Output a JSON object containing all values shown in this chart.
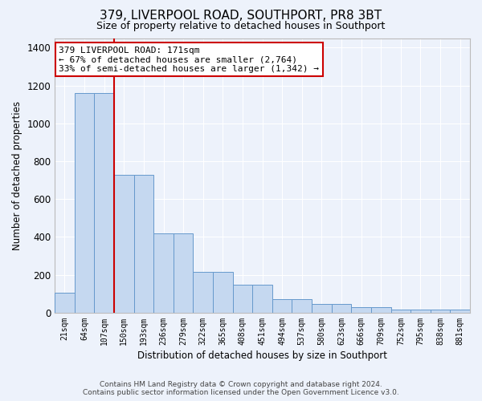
{
  "title": "379, LIVERPOOL ROAD, SOUTHPORT, PR8 3BT",
  "subtitle": "Size of property relative to detached houses in Southport",
  "xlabel": "Distribution of detached houses by size in Southport",
  "ylabel": "Number of detached properties",
  "footer1": "Contains HM Land Registry data © Crown copyright and database right 2024.",
  "footer2": "Contains public sector information licensed under the Open Government Licence v3.0.",
  "categories": [
    "21sqm",
    "64sqm",
    "107sqm",
    "150sqm",
    "193sqm",
    "236sqm",
    "279sqm",
    "322sqm",
    "365sqm",
    "408sqm",
    "451sqm",
    "494sqm",
    "537sqm",
    "580sqm",
    "623sqm",
    "666sqm",
    "709sqm",
    "752sqm",
    "795sqm",
    "838sqm",
    "881sqm"
  ],
  "bar_heights": [
    107,
    1160,
    1160,
    730,
    730,
    420,
    420,
    215,
    215,
    150,
    150,
    72,
    72,
    48,
    48,
    30,
    30,
    18,
    18,
    15,
    15
  ],
  "bar_color": "#c5d8f0",
  "bar_edge_color": "#6699cc",
  "annotation_line1": "379 LIVERPOOL ROAD: 171sqm",
  "annotation_line2": "← 67% of detached houses are smaller (2,764)",
  "annotation_line3": "33% of semi-detached houses are larger (1,342) →",
  "annotation_box_facecolor": "#ffffff",
  "annotation_box_edgecolor": "#cc0000",
  "vline_color": "#cc0000",
  "vline_x_index": 2.5,
  "ylim_max": 1450,
  "yticks": [
    0,
    200,
    400,
    600,
    800,
    1000,
    1200,
    1400
  ],
  "background_color": "#edf2fb",
  "grid_color": "#ffffff",
  "title_fontsize": 11,
  "subtitle_fontsize": 9
}
